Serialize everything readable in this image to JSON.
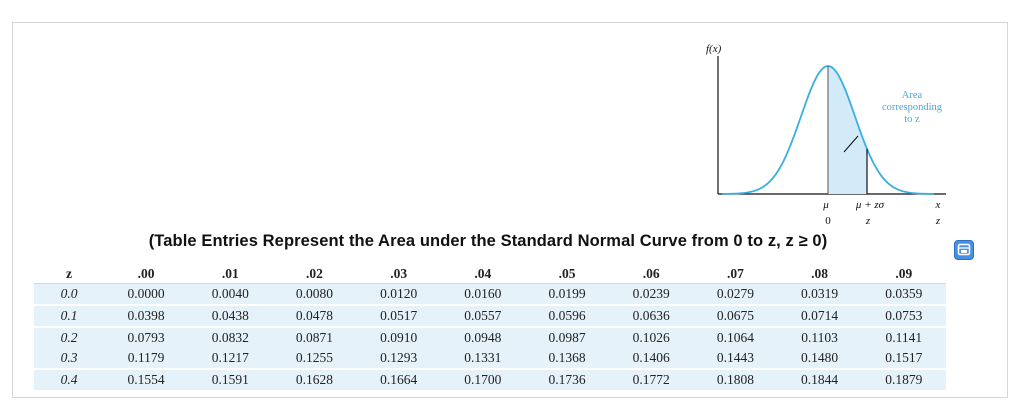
{
  "figure": {
    "fx_label": "f(x)",
    "area_label_line1": "Area",
    "area_label_line2": "corresponding",
    "area_label_line3": "to z",
    "mu_label": "μ",
    "mu_plus_label": "μ + zσ",
    "x_label": "x",
    "zero_label": "0",
    "z_label": "z",
    "z_axis_label": "z",
    "curve_color": "#3aaee0",
    "shade_color": "#d3ebf8"
  },
  "caption": "(Table Entries Represent the Area under the Standard Normal Curve from 0 to z, z ≥ 0)",
  "popout_icon": "popout-icon",
  "table": {
    "headers": [
      "z",
      ".00",
      ".01",
      ".02",
      ".03",
      ".04",
      ".05",
      ".06",
      ".07",
      ".08",
      ".09"
    ],
    "rows": [
      {
        "z": "0.0",
        "values": [
          "0.0000",
          "0.0040",
          "0.0080",
          "0.0120",
          "0.0160",
          "0.0199",
          "0.0239",
          "0.0279",
          "0.0319",
          "0.0359"
        ]
      },
      {
        "z": "0.1",
        "values": [
          "0.0398",
          "0.0438",
          "0.0478",
          "0.0517",
          "0.0557",
          "0.0596",
          "0.0636",
          "0.0675",
          "0.0714",
          "0.0753"
        ]
      },
      {
        "z": "0.2",
        "values": [
          "0.0793",
          "0.0832",
          "0.0871",
          "0.0910",
          "0.0948",
          "0.0987",
          "0.1026",
          "0.1064",
          "0.1103",
          "0.1141"
        ]
      },
      {
        "z": "0.3",
        "values": [
          "0.1179",
          "0.1217",
          "0.1255",
          "0.1293",
          "0.1331",
          "0.1368",
          "0.1406",
          "0.1443",
          "0.1480",
          "0.1517"
        ]
      },
      {
        "z": "0.4",
        "values": [
          "0.1554",
          "0.1591",
          "0.1628",
          "0.1664",
          "0.1700",
          "0.1736",
          "0.1772",
          "0.1808",
          "0.1844",
          "0.1879"
        ]
      }
    ]
  }
}
